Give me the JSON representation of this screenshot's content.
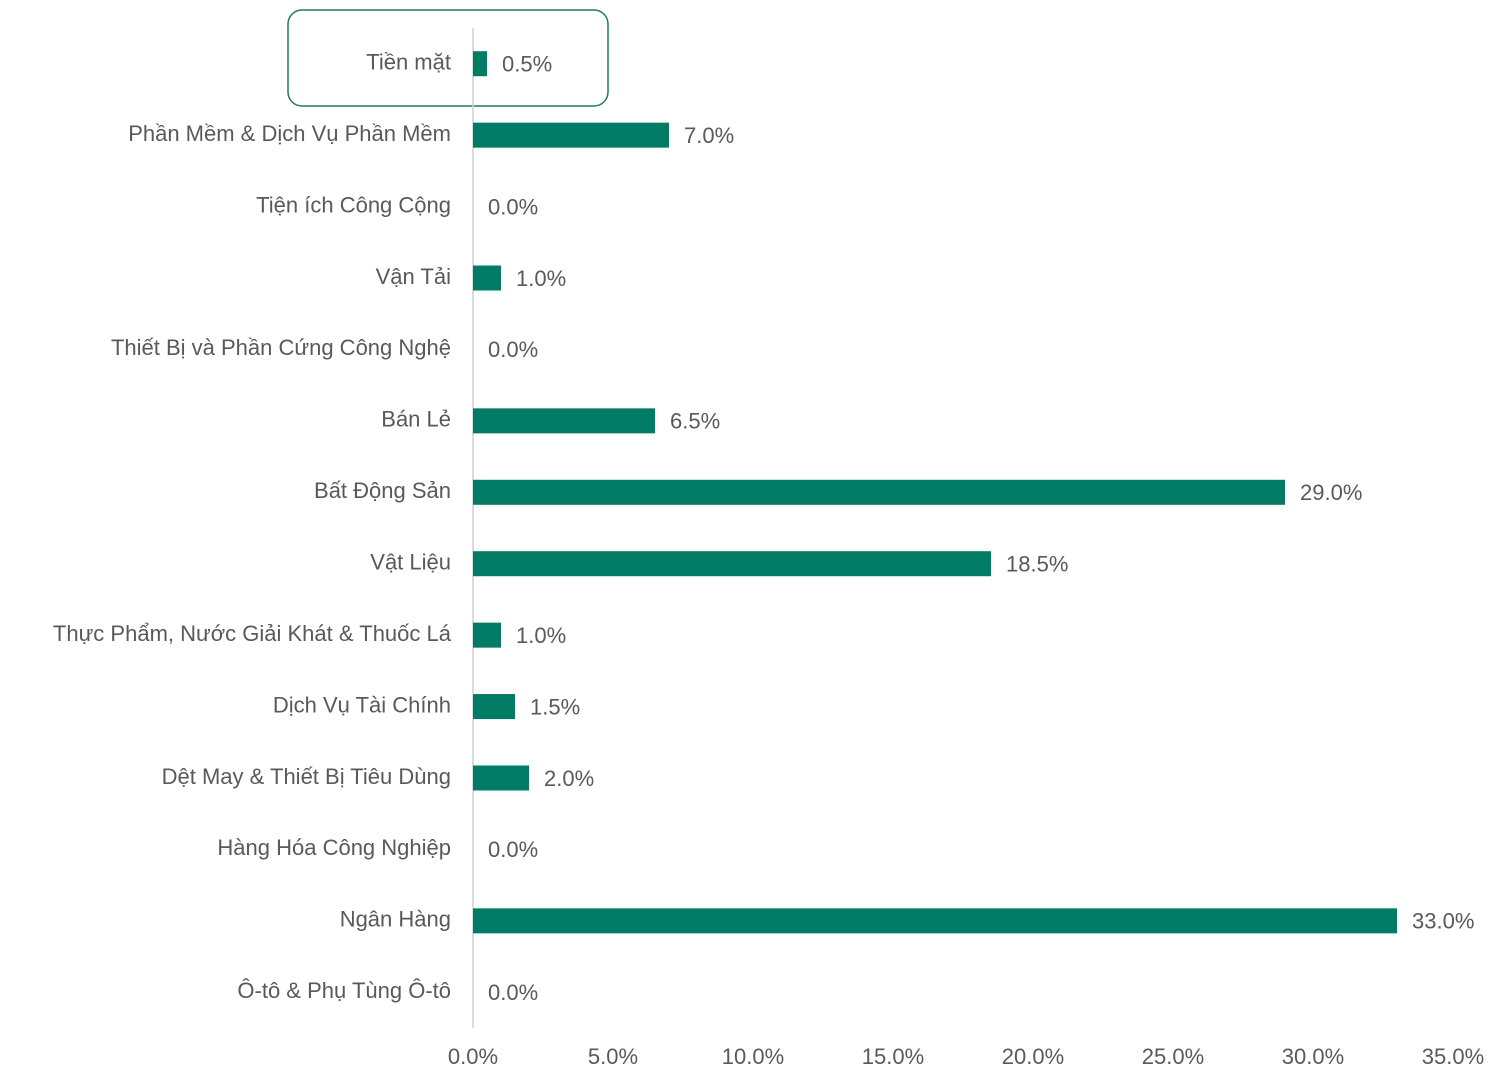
{
  "chart_data": {
    "type": "bar",
    "orientation": "horizontal",
    "categories": [
      "Tiền mặt",
      "Phần Mềm & Dịch Vụ Phần Mềm",
      "Tiện ích Công Cộng",
      "Vận Tải",
      "Thiết Bị và Phần Cứng Công Nghệ",
      "Bán Lẻ",
      "Bất Động Sản",
      "Vật Liệu",
      "Thực Phẩm, Nước Giải Khát & Thuốc Lá",
      "Dịch Vụ Tài Chính",
      "Dệt May & Thiết Bị Tiêu Dùng",
      "Hàng Hóa Công Nghiệp",
      "Ngân Hàng",
      "Ô-tô & Phụ Tùng Ô-tô"
    ],
    "values": [
      0.5,
      7.0,
      0.0,
      1.0,
      0.0,
      6.5,
      29.0,
      18.5,
      1.0,
      1.5,
      2.0,
      0.0,
      33.0,
      0.0
    ],
    "value_labels": [
      "0.5%",
      "7.0%",
      "0.0%",
      "1.0%",
      "0.0%",
      "6.5%",
      "29.0%",
      "18.5%",
      "1.0%",
      "1.5%",
      "2.0%",
      "0.0%",
      "33.0%",
      "0.0%"
    ],
    "color": "#017b63",
    "xlim": [
      0,
      35
    ],
    "xticks": [
      {
        "value": 0,
        "label": "0.0%"
      },
      {
        "value": 5,
        "label": "5.0%"
      },
      {
        "value": 10,
        "label": "10.0%"
      },
      {
        "value": 15,
        "label": "15.0%"
      },
      {
        "value": 20,
        "label": "20.0%"
      },
      {
        "value": 25,
        "label": "25.0%"
      },
      {
        "value": 30,
        "label": "30.0%"
      },
      {
        "value": 35,
        "label": "35.0%"
      }
    ],
    "grid": false
  }
}
